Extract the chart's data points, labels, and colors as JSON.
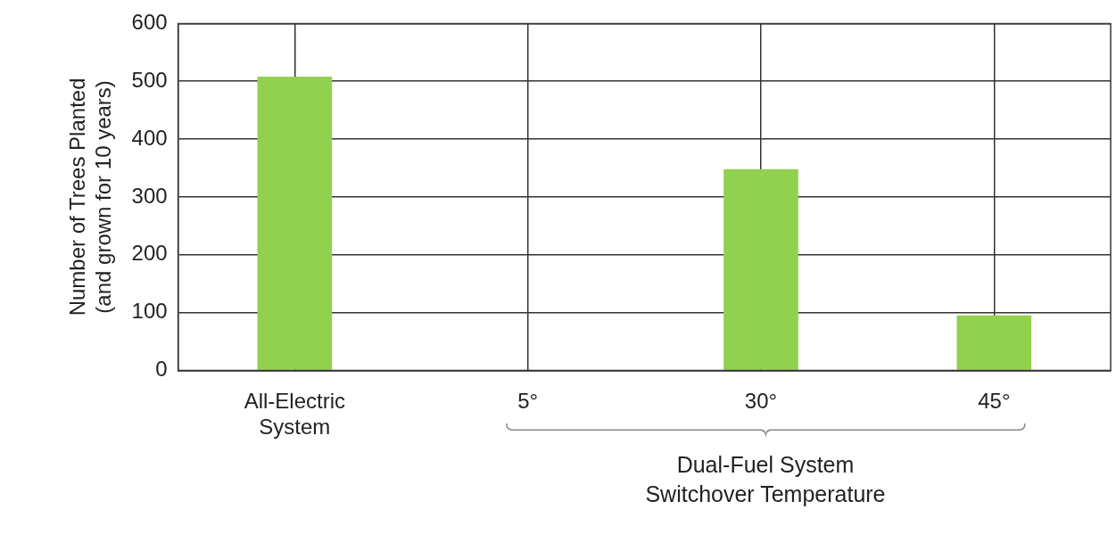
{
  "chart_data": {
    "type": "bar",
    "ylabel": "Number of Trees Planted\n(and grown for 10 years)",
    "categories": [
      "All-Electric\nSystem",
      "5°",
      "30°",
      "45°"
    ],
    "values": [
      508,
      0,
      348,
      95
    ],
    "color": "#92d050",
    "ylim": [
      0,
      600
    ],
    "yticks": [
      0,
      100,
      200,
      300,
      400,
      500,
      600
    ],
    "grid": true,
    "annotations": [
      "Dual-Fuel System\nSwitchover Temperature"
    ]
  }
}
